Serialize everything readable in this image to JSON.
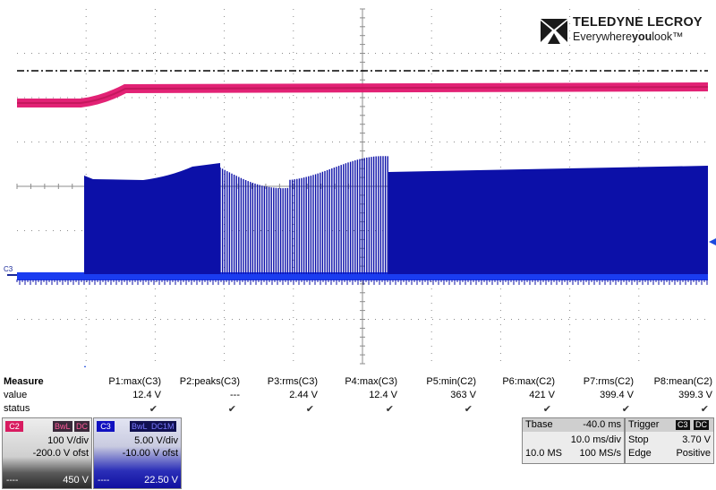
{
  "brand": {
    "name": "TELEDYNE LECROY",
    "tagline_pre": "Everywhere",
    "tagline_bold": "you",
    "tagline_post": "look",
    "tm": "™"
  },
  "screen": {
    "c3_marker": "C3"
  },
  "colors": {
    "c2": "#e0166e",
    "c3": "#0c10a8",
    "c3_bright": "#1a3cf0",
    "grid": "#8c8c8c"
  },
  "measure": {
    "title": "Measure",
    "row_value": "value",
    "row_status": "status",
    "columns": [
      {
        "param": "P1:max(C3)",
        "value": "12.4 V",
        "status": "✔"
      },
      {
        "param": "P2:peaks(C3)",
        "value": "---",
        "status": "✔"
      },
      {
        "param": "P3:rms(C3)",
        "value": "2.44 V",
        "status": "✔"
      },
      {
        "param": "P4:max(C3)",
        "value": "12.4 V",
        "status": "✔"
      },
      {
        "param": "P5:min(C2)",
        "value": "363 V",
        "status": "✔"
      },
      {
        "param": "P6:max(C2)",
        "value": "421 V",
        "status": "✔"
      },
      {
        "param": "P7:rms(C2)",
        "value": "399.4 V",
        "status": "✔"
      },
      {
        "param": "P8:mean(C2)",
        "value": "399.3 V",
        "status": "✔"
      }
    ]
  },
  "channels": {
    "c2": {
      "label": "C2",
      "badge1": "BwL",
      "badge2": "DC",
      "vdiv": "100 V/div",
      "offset": "-200.0 V ofst",
      "dash": "----",
      "value": "450 V"
    },
    "c3": {
      "label": "C3",
      "badge1": "BwL",
      "badge2": "DC1M",
      "vdiv": "5.00 V/div",
      "offset": "-10.00 V ofst",
      "dash": "----",
      "value": "22.50 V"
    }
  },
  "timebase": {
    "title": "Tbase",
    "delay": "-40.0 ms",
    "tdiv": "10.0 ms/div",
    "samples": "10.0 MS",
    "rate": "100 MS/s"
  },
  "trigger": {
    "title": "Trigger",
    "badge1": "C3",
    "badge2": "DC",
    "mode": "Stop",
    "level": "3.70 V",
    "type": "Edge",
    "slope": "Positive"
  }
}
